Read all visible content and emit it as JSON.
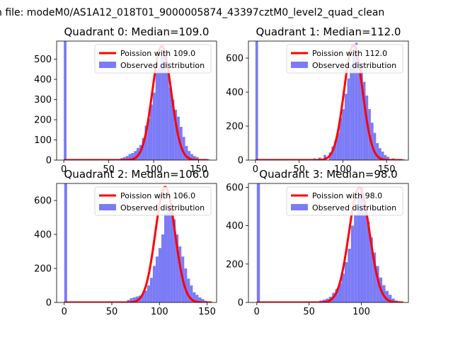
{
  "figure": {
    "suptitle": "n file: modeM0/AS1A12_018T01_9000005874_43397cztM0_level2_quad_clean"
  },
  "chart_data": [
    {
      "type": "histogram",
      "title": "Quadrant 0: Median=109.0",
      "xlim": [
        -8,
        170
      ],
      "ylim": [
        0,
        590
      ],
      "xticks": [
        0,
        50,
        100,
        150
      ],
      "yticks": [
        0,
        100,
        200,
        300,
        400,
        500
      ],
      "bin_width": 3,
      "histogram": {
        "name": "Observed distribution",
        "color": "#7b7bf7",
        "bins": [
          [
            0,
            590
          ],
          [
            48,
            5
          ],
          [
            57,
            5
          ],
          [
            63,
            10
          ],
          [
            66,
            15
          ],
          [
            69,
            20
          ],
          [
            72,
            30
          ],
          [
            75,
            35
          ],
          [
            78,
            45
          ],
          [
            81,
            60
          ],
          [
            84,
            75
          ],
          [
            87,
            110
          ],
          [
            90,
            170
          ],
          [
            93,
            205
          ],
          [
            96,
            275
          ],
          [
            99,
            335
          ],
          [
            102,
            440
          ],
          [
            105,
            465
          ],
          [
            108,
            520
          ],
          [
            111,
            545
          ],
          [
            114,
            440
          ],
          [
            117,
            360
          ],
          [
            120,
            300
          ],
          [
            123,
            250
          ],
          [
            126,
            215
          ],
          [
            129,
            165
          ],
          [
            132,
            115
          ],
          [
            135,
            70
          ],
          [
            138,
            45
          ],
          [
            141,
            30
          ],
          [
            144,
            20
          ],
          [
            147,
            15
          ],
          [
            153,
            5
          ],
          [
            159,
            5
          ]
        ]
      },
      "curve": {
        "name": "Poission with 109.0",
        "color": "#ff0000",
        "mean": 109.0,
        "peak": 565,
        "x_range": [
          0,
          160
        ]
      },
      "legend": {
        "loc": "upper right"
      }
    },
    {
      "type": "histogram",
      "title": "Quadrant 1: Median=112.0",
      "xlim": [
        -8,
        175
      ],
      "ylim": [
        0,
        700
      ],
      "xticks": [
        0,
        50,
        100,
        150
      ],
      "yticks": [
        0,
        200,
        400,
        600
      ],
      "bin_width": 3,
      "histogram": {
        "name": "Observed distribution",
        "color": "#7b7bf7",
        "bins": [
          [
            0,
            700
          ],
          [
            60,
            5
          ],
          [
            66,
            10
          ],
          [
            72,
            15
          ],
          [
            78,
            30
          ],
          [
            84,
            45
          ],
          [
            87,
            80
          ],
          [
            90,
            110
          ],
          [
            93,
            160
          ],
          [
            96,
            250
          ],
          [
            99,
            300
          ],
          [
            102,
            390
          ],
          [
            105,
            480
          ],
          [
            108,
            560
          ],
          [
            111,
            620
          ],
          [
            114,
            690
          ],
          [
            117,
            520
          ],
          [
            120,
            560
          ],
          [
            123,
            460
          ],
          [
            126,
            380
          ],
          [
            129,
            300
          ],
          [
            132,
            220
          ],
          [
            135,
            160
          ],
          [
            138,
            100
          ],
          [
            141,
            70
          ],
          [
            144,
            50
          ],
          [
            147,
            30
          ],
          [
            150,
            20
          ],
          [
            156,
            10
          ],
          [
            162,
            5
          ],
          [
            168,
            5
          ]
        ]
      },
      "curve": {
        "name": "Poission with 112.0",
        "color": "#ff0000",
        "mean": 112.0,
        "peak": 675,
        "x_range": [
          0,
          168
        ]
      },
      "legend": {
        "loc": "upper right"
      }
    },
    {
      "type": "histogram",
      "title": "Quadrant 2: Median=106.0",
      "xlim": [
        -8,
        160
      ],
      "ylim": [
        0,
        700
      ],
      "xticks": [
        0,
        50,
        100,
        150
      ],
      "yticks": [
        0,
        200,
        400,
        600
      ],
      "bin_width": 3,
      "histogram": {
        "name": "Observed distribution",
        "color": "#7b7bf7",
        "bins": [
          [
            0,
            700
          ],
          [
            60,
            5
          ],
          [
            66,
            15
          ],
          [
            69,
            25
          ],
          [
            72,
            30
          ],
          [
            75,
            35
          ],
          [
            78,
            40
          ],
          [
            81,
            50
          ],
          [
            84,
            70
          ],
          [
            87,
            100
          ],
          [
            90,
            145
          ],
          [
            93,
            215
          ],
          [
            96,
            270
          ],
          [
            99,
            320
          ],
          [
            102,
            400
          ],
          [
            105,
            520
          ],
          [
            108,
            575
          ],
          [
            111,
            530
          ],
          [
            114,
            490
          ],
          [
            117,
            400
          ],
          [
            120,
            330
          ],
          [
            123,
            270
          ],
          [
            126,
            200
          ],
          [
            129,
            140
          ],
          [
            132,
            100
          ],
          [
            135,
            60
          ],
          [
            138,
            45
          ],
          [
            141,
            30
          ],
          [
            144,
            20
          ],
          [
            147,
            10
          ],
          [
            150,
            5
          ]
        ]
      },
      "curve": {
        "name": "Poission with 106.0",
        "color": "#ff0000",
        "mean": 106.0,
        "peak": 680,
        "x_range": [
          0,
          155
        ]
      },
      "legend": {
        "loc": "upper right"
      }
    },
    {
      "type": "histogram",
      "title": "Quadrant 3: Median=98.0",
      "xlim": [
        -8,
        145
      ],
      "ylim": [
        0,
        620
      ],
      "xticks": [
        0,
        50,
        100
      ],
      "yticks": [
        0,
        200,
        400,
        600
      ],
      "bin_width": 3,
      "histogram": {
        "name": "Observed distribution",
        "color": "#7b7bf7",
        "bins": [
          [
            0,
            620
          ],
          [
            54,
            5
          ],
          [
            60,
            10
          ],
          [
            63,
            15
          ],
          [
            66,
            20
          ],
          [
            69,
            30
          ],
          [
            72,
            50
          ],
          [
            75,
            70
          ],
          [
            78,
            100
          ],
          [
            81,
            150
          ],
          [
            84,
            210
          ],
          [
            87,
            280
          ],
          [
            90,
            400
          ],
          [
            93,
            460
          ],
          [
            96,
            560
          ],
          [
            99,
            600
          ],
          [
            102,
            500
          ],
          [
            105,
            420
          ],
          [
            108,
            340
          ],
          [
            111,
            260
          ],
          [
            114,
            190
          ],
          [
            117,
            130
          ],
          [
            120,
            90
          ],
          [
            123,
            60
          ],
          [
            126,
            40
          ],
          [
            129,
            20
          ],
          [
            132,
            10
          ],
          [
            135,
            5
          ]
        ]
      },
      "curve": {
        "name": "Poission with 98.0",
        "color": "#ff0000",
        "mean": 98.0,
        "peak": 598,
        "x_range": [
          0,
          140
        ]
      },
      "legend": {
        "loc": "upper right"
      }
    }
  ]
}
